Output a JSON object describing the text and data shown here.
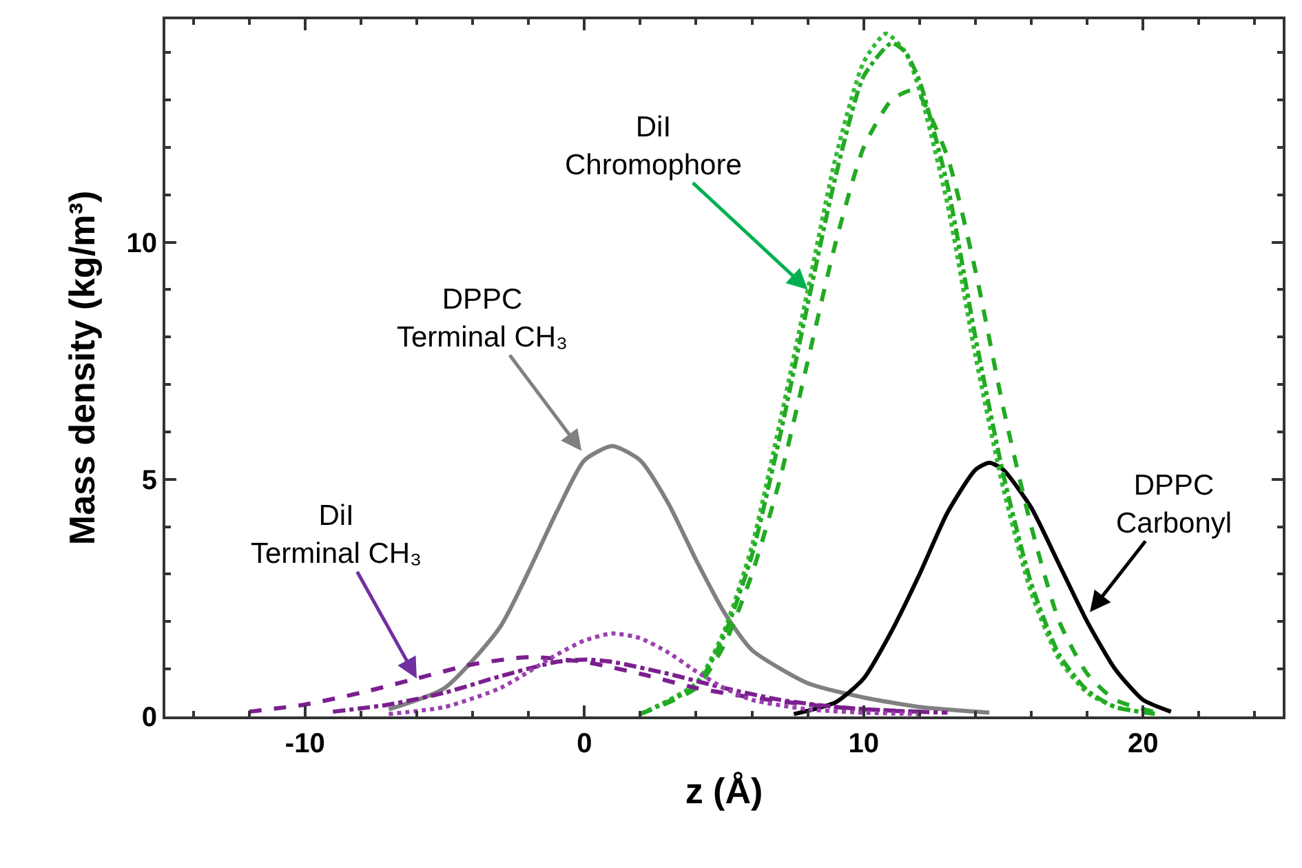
{
  "chart_data": {
    "type": "line",
    "xlabel": "z (Å)",
    "ylabel": "Mass density (kg/m³)",
    "xlim": [
      -15,
      25
    ],
    "xticks": [
      -10,
      0,
      10,
      20
    ],
    "ylim": [
      0,
      14.7
    ],
    "yticks": [
      0,
      5,
      10
    ],
    "marker": "none",
    "series": [
      {
        "color": "#808080",
        "line_style": "solid",
        "x": [
          -7,
          -5,
          -3,
          -1,
          0,
          1,
          2,
          3,
          4,
          5,
          6,
          8,
          10,
          12,
          14.5
        ],
        "values": [
          0.15,
          0.6,
          1.9,
          4.3,
          5.4,
          5.7,
          5.4,
          4.5,
          3.3,
          2.2,
          1.4,
          0.7,
          0.4,
          0.2,
          0.08
        ]
      },
      {
        "color": "#000000",
        "line_style": "solid",
        "x": [
          7.5,
          9,
          10,
          11,
          12,
          13,
          14,
          14.5,
          15,
          16,
          17,
          18,
          19,
          20,
          21
        ],
        "values": [
          0.05,
          0.3,
          0.8,
          1.8,
          3.0,
          4.3,
          5.2,
          5.35,
          5.2,
          4.4,
          3.2,
          2.0,
          1.0,
          0.35,
          0.1
        ]
      },
      {
        "color": "#33bb33",
        "line_style": "dotted",
        "x": [
          2,
          4,
          5,
          6,
          7,
          8,
          9,
          10,
          10.8,
          11.5,
          12,
          13,
          14,
          15,
          16,
          17,
          18,
          19,
          20.5
        ],
        "values": [
          0.05,
          0.7,
          1.8,
          3.6,
          6.2,
          9.0,
          11.8,
          13.8,
          14.4,
          14.0,
          13.2,
          10.8,
          7.6,
          4.8,
          2.6,
          1.2,
          0.5,
          0.2,
          0.05
        ]
      },
      {
        "color": "#22aa22",
        "line_style": "dashdot",
        "x": [
          2,
          4,
          5,
          6,
          7,
          8,
          9,
          10,
          11,
          11.5,
          12,
          13,
          14,
          15,
          16,
          17,
          18,
          19,
          20.5
        ],
        "values": [
          0.05,
          0.65,
          1.7,
          3.4,
          5.9,
          8.7,
          11.4,
          13.5,
          14.2,
          14.0,
          13.4,
          11.2,
          8.0,
          5.1,
          2.8,
          1.3,
          0.55,
          0.2,
          0.05
        ]
      },
      {
        "color": "#22aa22",
        "line_style": "dashed",
        "x": [
          2,
          4,
          5,
          6,
          7,
          8,
          9,
          10,
          11,
          11.7,
          12,
          13,
          14,
          15,
          16,
          17,
          18,
          19,
          20.5
        ],
        "values": [
          0.05,
          0.6,
          1.5,
          3.0,
          5.0,
          7.5,
          10.0,
          12.0,
          13.0,
          13.2,
          13.1,
          11.8,
          9.4,
          6.5,
          4.0,
          2.0,
          0.9,
          0.35,
          0.08
        ]
      },
      {
        "color": "#7b1f8f",
        "line_style": "dashed",
        "x": [
          -12,
          -10,
          -8,
          -6,
          -4,
          -2,
          0,
          2,
          4,
          6,
          8,
          10,
          12
        ],
        "values": [
          0.1,
          0.25,
          0.5,
          0.8,
          1.1,
          1.25,
          1.15,
          0.9,
          0.6,
          0.4,
          0.25,
          0.15,
          0.1
        ]
      },
      {
        "color": "#7b1f8f",
        "line_style": "dashdot",
        "x": [
          -9,
          -7,
          -5,
          -3,
          -1,
          0,
          1,
          3,
          5,
          7,
          9,
          11,
          13
        ],
        "values": [
          0.1,
          0.25,
          0.5,
          0.85,
          1.15,
          1.2,
          1.15,
          0.9,
          0.6,
          0.35,
          0.2,
          0.12,
          0.08
        ]
      },
      {
        "color": "#9b3fb0",
        "line_style": "dotted",
        "x": [
          -7,
          -5,
          -3,
          -1,
          0,
          1,
          2,
          3,
          4,
          5,
          6,
          8,
          10,
          12
        ],
        "values": [
          0.05,
          0.2,
          0.6,
          1.3,
          1.6,
          1.75,
          1.65,
          1.35,
          0.95,
          0.6,
          0.35,
          0.15,
          0.08,
          0.05
        ]
      }
    ],
    "annotations": [
      {
        "text": "DPPC\nTerminal CH₃",
        "x": -0.1,
        "y": 5.6
      },
      {
        "text": "DiI\nTerminal CH₃",
        "x": -6,
        "y": 0.8
      },
      {
        "text": "DiI\nChromophore",
        "x": 8,
        "y": 9.0
      },
      {
        "text": "DPPC\nCarbonyl",
        "x": 18.1,
        "y": 2.2
      }
    ]
  }
}
